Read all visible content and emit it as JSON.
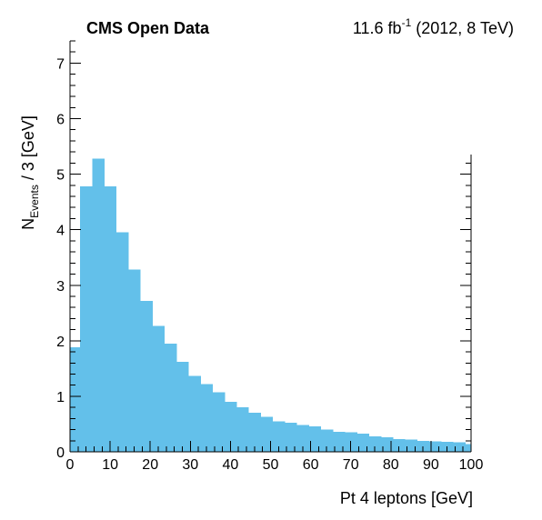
{
  "chart_data": {
    "type": "bar",
    "title_left": "CMS Open Data",
    "title_right_prefix": "11.6 fb",
    "title_right_sup": "-1",
    "title_right_suffix": " (2012, 8 TeV)",
    "xlabel": "Pt 4 leptons [GeV]",
    "ylabel_main": "N",
    "ylabel_sub": "Events",
    "ylabel_rest": " / 3 [GeV]",
    "xlim": [
      0,
      100
    ],
    "ylim": [
      0,
      7.4
    ],
    "bin_width": 3,
    "x_tick_labels": [
      "0",
      "10",
      "20",
      "30",
      "40",
      "50",
      "60",
      "70",
      "80",
      "90",
      "100"
    ],
    "x_tick_values": [
      0,
      10,
      20,
      30,
      40,
      50,
      60,
      70,
      80,
      90,
      100
    ],
    "y_tick_labels": [
      "0",
      "1",
      "2",
      "3",
      "4",
      "5",
      "6",
      "7"
    ],
    "y_tick_values": [
      0,
      1,
      2,
      3,
      4,
      5,
      6,
      7
    ],
    "bin_edges": [
      0,
      2.5,
      5.5,
      8.5,
      11.5,
      14.5,
      17.5,
      20.5,
      23.5,
      26.5,
      29.5,
      32.5,
      35.5,
      38.5,
      41.5,
      44.5,
      47.5,
      50.5,
      53.5,
      56.5,
      59.5,
      62.5,
      65.5,
      68.5,
      71.5,
      74.5,
      77.5,
      80.5,
      83.5,
      86.5,
      89.5,
      92.5,
      95.5,
      98.5,
      100
    ],
    "values": [
      1.88,
      4.78,
      5.28,
      4.78,
      3.95,
      3.28,
      2.72,
      2.27,
      1.95,
      1.62,
      1.37,
      1.22,
      1.07,
      0.9,
      0.8,
      0.7,
      0.63,
      0.55,
      0.52,
      0.48,
      0.46,
      0.4,
      0.36,
      0.35,
      0.33,
      0.28,
      0.26,
      0.23,
      0.22,
      0.2,
      0.19,
      0.18,
      0.17,
      0.14
    ],
    "bar_color": "#63c0ea",
    "grid": false
  }
}
